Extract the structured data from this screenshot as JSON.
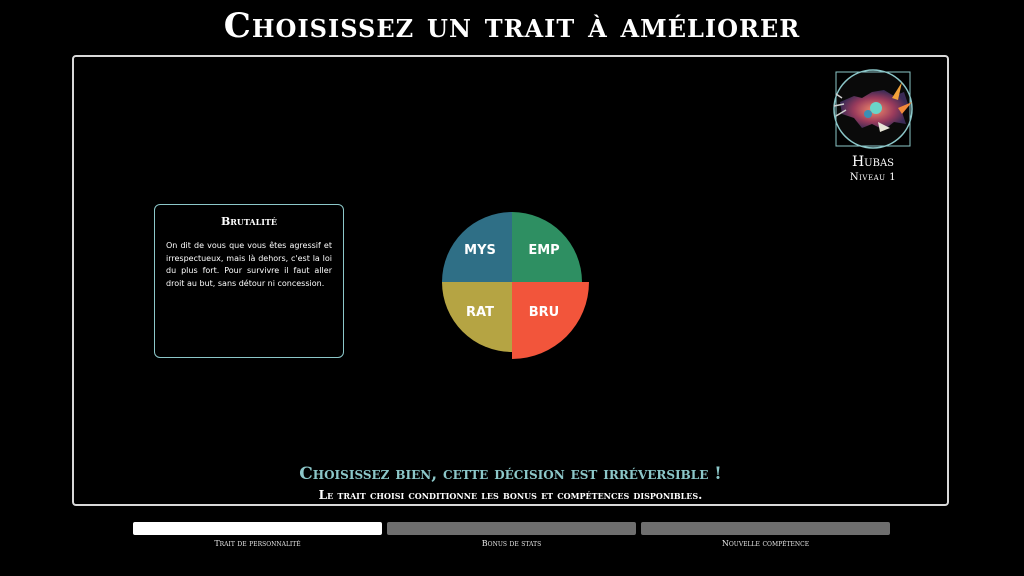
{
  "header": {
    "title": "Choisissez un trait à améliorer"
  },
  "character": {
    "name": "Hubas",
    "level": "Niveau 1",
    "portrait_icon": "creature-portrait-icon"
  },
  "trait_description": {
    "title": "Brutalité",
    "text": "On dit de vous que vous êtes agressif et irrespectueux, mais là dehors, c'est la loi du plus fort. Pour survivre il faut aller droit au but, sans détour ni concession."
  },
  "wheel": {
    "selected": "BRU",
    "traits": [
      {
        "label": "MYS",
        "color": "#2f6f86"
      },
      {
        "label": "EMP",
        "color": "#2e8f62"
      },
      {
        "label": "RAT",
        "color": "#b5a443"
      },
      {
        "label": "BRU",
        "color": "#f2553b"
      }
    ]
  },
  "footer": {
    "warning": "Choisissez bien, cette décision est irréversible !",
    "subtext": "Le trait choisi conditionne les bonus et compétences disponibles."
  },
  "steps": [
    {
      "label": "Trait de personnalité",
      "active": true
    },
    {
      "label": "Bonus de stats",
      "active": false
    },
    {
      "label": "Nouvelle compétence",
      "active": false
    }
  ],
  "colors": {
    "accent": "#8cc7c9",
    "background": "#000000"
  }
}
